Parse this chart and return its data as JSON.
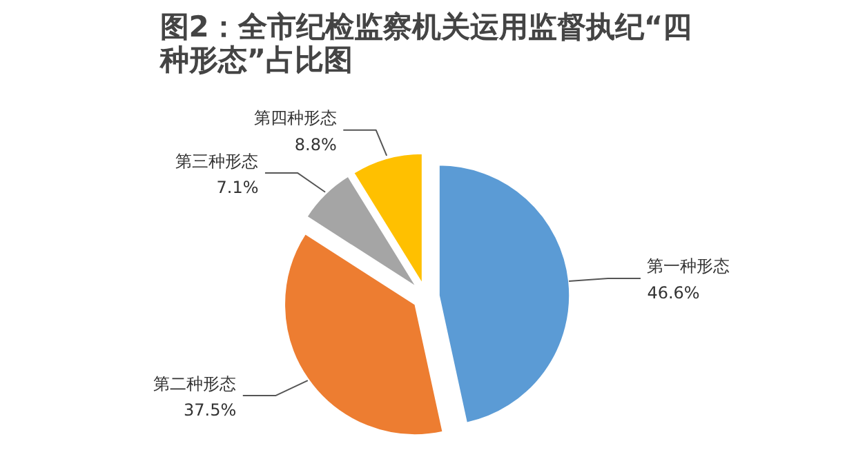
{
  "chart_data": {
    "type": "pie",
    "title": "图2：全市纪检监察机关运用监督执纪“四种形态”占比图",
    "categories": [
      "第一种形态",
      "第二种形态",
      "第三种形态",
      "第四种形态"
    ],
    "values": [
      46.6,
      37.5,
      7.1,
      8.8
    ],
    "value_labels": [
      "46.6%",
      "37.5%",
      "7.1%",
      "8.8%"
    ],
    "colors": [
      "#5b9bd5",
      "#ed7d31",
      "#a5a5a5",
      "#ffc000"
    ]
  }
}
